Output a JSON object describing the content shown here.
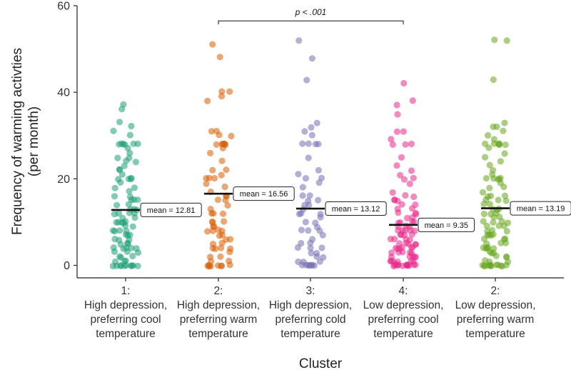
{
  "chart_data": {
    "type": "scatter",
    "subtype": "jittered strip plot with group means",
    "title": "",
    "xlabel": "Cluster",
    "ylabel_lines": [
      "Frequency of warming activties",
      "(per month)"
    ],
    "ylim": [
      0,
      60
    ],
    "yticks": [
      0,
      20,
      40,
      60
    ],
    "grid": false,
    "categories": [
      {
        "lines": [
          "1:",
          "High depression,",
          "preferring cool",
          "temperature"
        ]
      },
      {
        "lines": [
          "2:",
          "High depression,",
          "preferring warm",
          "temperature"
        ]
      },
      {
        "lines": [
          "3:",
          "High depression,",
          "preferring cold",
          "temperature"
        ]
      },
      {
        "lines": [
          "4:",
          "Low depression,",
          "preferring cool",
          "temperature"
        ]
      },
      {
        "lines": [
          "2:",
          "Low depression,",
          "preferring warm",
          "temperature"
        ]
      }
    ],
    "colors": [
      "#1b9e77",
      "#d95f02",
      "#7570b3",
      "#e7298a",
      "#66a61e"
    ],
    "means": [
      12.81,
      16.56,
      13.12,
      9.35,
      13.19
    ],
    "mean_labels": [
      "mean = 12.81",
      "mean = 16.56",
      "mean = 13.12",
      "mean = 9.35",
      "mean = 13.19"
    ],
    "significance": {
      "from_group": 2,
      "to_group": 4,
      "label": "p < .001",
      "y": 56.5
    },
    "series": [
      {
        "name": "1: High depression, preferring cool temperature",
        "values": [
          37,
          36,
          33,
          32,
          31,
          30,
          28,
          28,
          28,
          28,
          28,
          28,
          27,
          26,
          25,
          25,
          24,
          24,
          23,
          22,
          22,
          21,
          20,
          20,
          20,
          20,
          19,
          18,
          18,
          17,
          16,
          16,
          15,
          15,
          15,
          14,
          14,
          13,
          13,
          13,
          12,
          12,
          12,
          12,
          11,
          11,
          10,
          10,
          10,
          10,
          10,
          9,
          9,
          8,
          8,
          8,
          8,
          7,
          7,
          7,
          6,
          6,
          6,
          5,
          5,
          5,
          4,
          4,
          4,
          4,
          4,
          3,
          3,
          3,
          2,
          2,
          2,
          1,
          1,
          1,
          0,
          0,
          0,
          0,
          0,
          0,
          0,
          0,
          0,
          0
        ]
      },
      {
        "name": "2: High depression, preferring warm temperature",
        "values": [
          51,
          48,
          40,
          40,
          39,
          38,
          31,
          31,
          30,
          30,
          28,
          28,
          28,
          28,
          28,
          28,
          27,
          26,
          24,
          22,
          22,
          21,
          20,
          20,
          20,
          19,
          18,
          17,
          16,
          16,
          15,
          15,
          14,
          13,
          12,
          12,
          12,
          10,
          10,
          10,
          9,
          9,
          8,
          8,
          8,
          8,
          7,
          7,
          6,
          6,
          5,
          5,
          4,
          4,
          4,
          4,
          3,
          2,
          2,
          1,
          1,
          0,
          0,
          0,
          0,
          0,
          0,
          0,
          0
        ]
      },
      {
        "name": "3: High depression, preferring cold temperature",
        "values": [
          52,
          48,
          43,
          33,
          32,
          31,
          30,
          28,
          28,
          28,
          28,
          25,
          22,
          21,
          20,
          20,
          19,
          18,
          16,
          16,
          15,
          15,
          14,
          14,
          13,
          12,
          12,
          12,
          11,
          10,
          10,
          9,
          8,
          8,
          8,
          7,
          6,
          5,
          5,
          4,
          4,
          4,
          3,
          3,
          2,
          2,
          1,
          1,
          1,
          0,
          0,
          0,
          0,
          0,
          0,
          0
        ]
      },
      {
        "name": "4: Low depression, preferring cool temperature",
        "values": [
          42,
          38,
          37,
          35,
          31,
          31,
          29,
          28,
          28,
          28,
          25,
          23,
          22,
          21,
          20,
          20,
          19,
          17,
          16,
          16,
          15,
          15,
          15,
          14,
          14,
          13,
          13,
          12,
          12,
          12,
          11,
          11,
          10,
          10,
          10,
          10,
          9,
          9,
          9,
          8,
          8,
          8,
          8,
          8,
          7,
          7,
          7,
          7,
          6,
          6,
          6,
          6,
          5,
          5,
          5,
          5,
          5,
          4,
          4,
          4,
          4,
          4,
          4,
          3,
          3,
          3,
          3,
          3,
          2,
          2,
          2,
          2,
          2,
          1,
          1,
          1,
          1,
          1,
          1,
          0,
          0,
          0,
          0,
          0,
          0,
          0,
          0,
          0,
          0,
          0,
          0,
          0
        ]
      },
      {
        "name": "2: Low depression, preferring warm temperature",
        "values": [
          52,
          52,
          43,
          33,
          32,
          32,
          31,
          30,
          29,
          28,
          28,
          28,
          28,
          28,
          28,
          27,
          26,
          25,
          24,
          23,
          22,
          21,
          20,
          20,
          20,
          20,
          20,
          19,
          18,
          18,
          17,
          16,
          16,
          16,
          15,
          15,
          15,
          14,
          14,
          13,
          13,
          13,
          12,
          12,
          12,
          11,
          11,
          10,
          10,
          10,
          10,
          9,
          9,
          9,
          8,
          8,
          8,
          7,
          7,
          7,
          7,
          6,
          6,
          6,
          5,
          5,
          5,
          4,
          4,
          4,
          4,
          4,
          3,
          3,
          3,
          2,
          2,
          2,
          1,
          1,
          1,
          0,
          0,
          0,
          0,
          0,
          0,
          0,
          0,
          0,
          0,
          0,
          0
        ]
      }
    ]
  }
}
